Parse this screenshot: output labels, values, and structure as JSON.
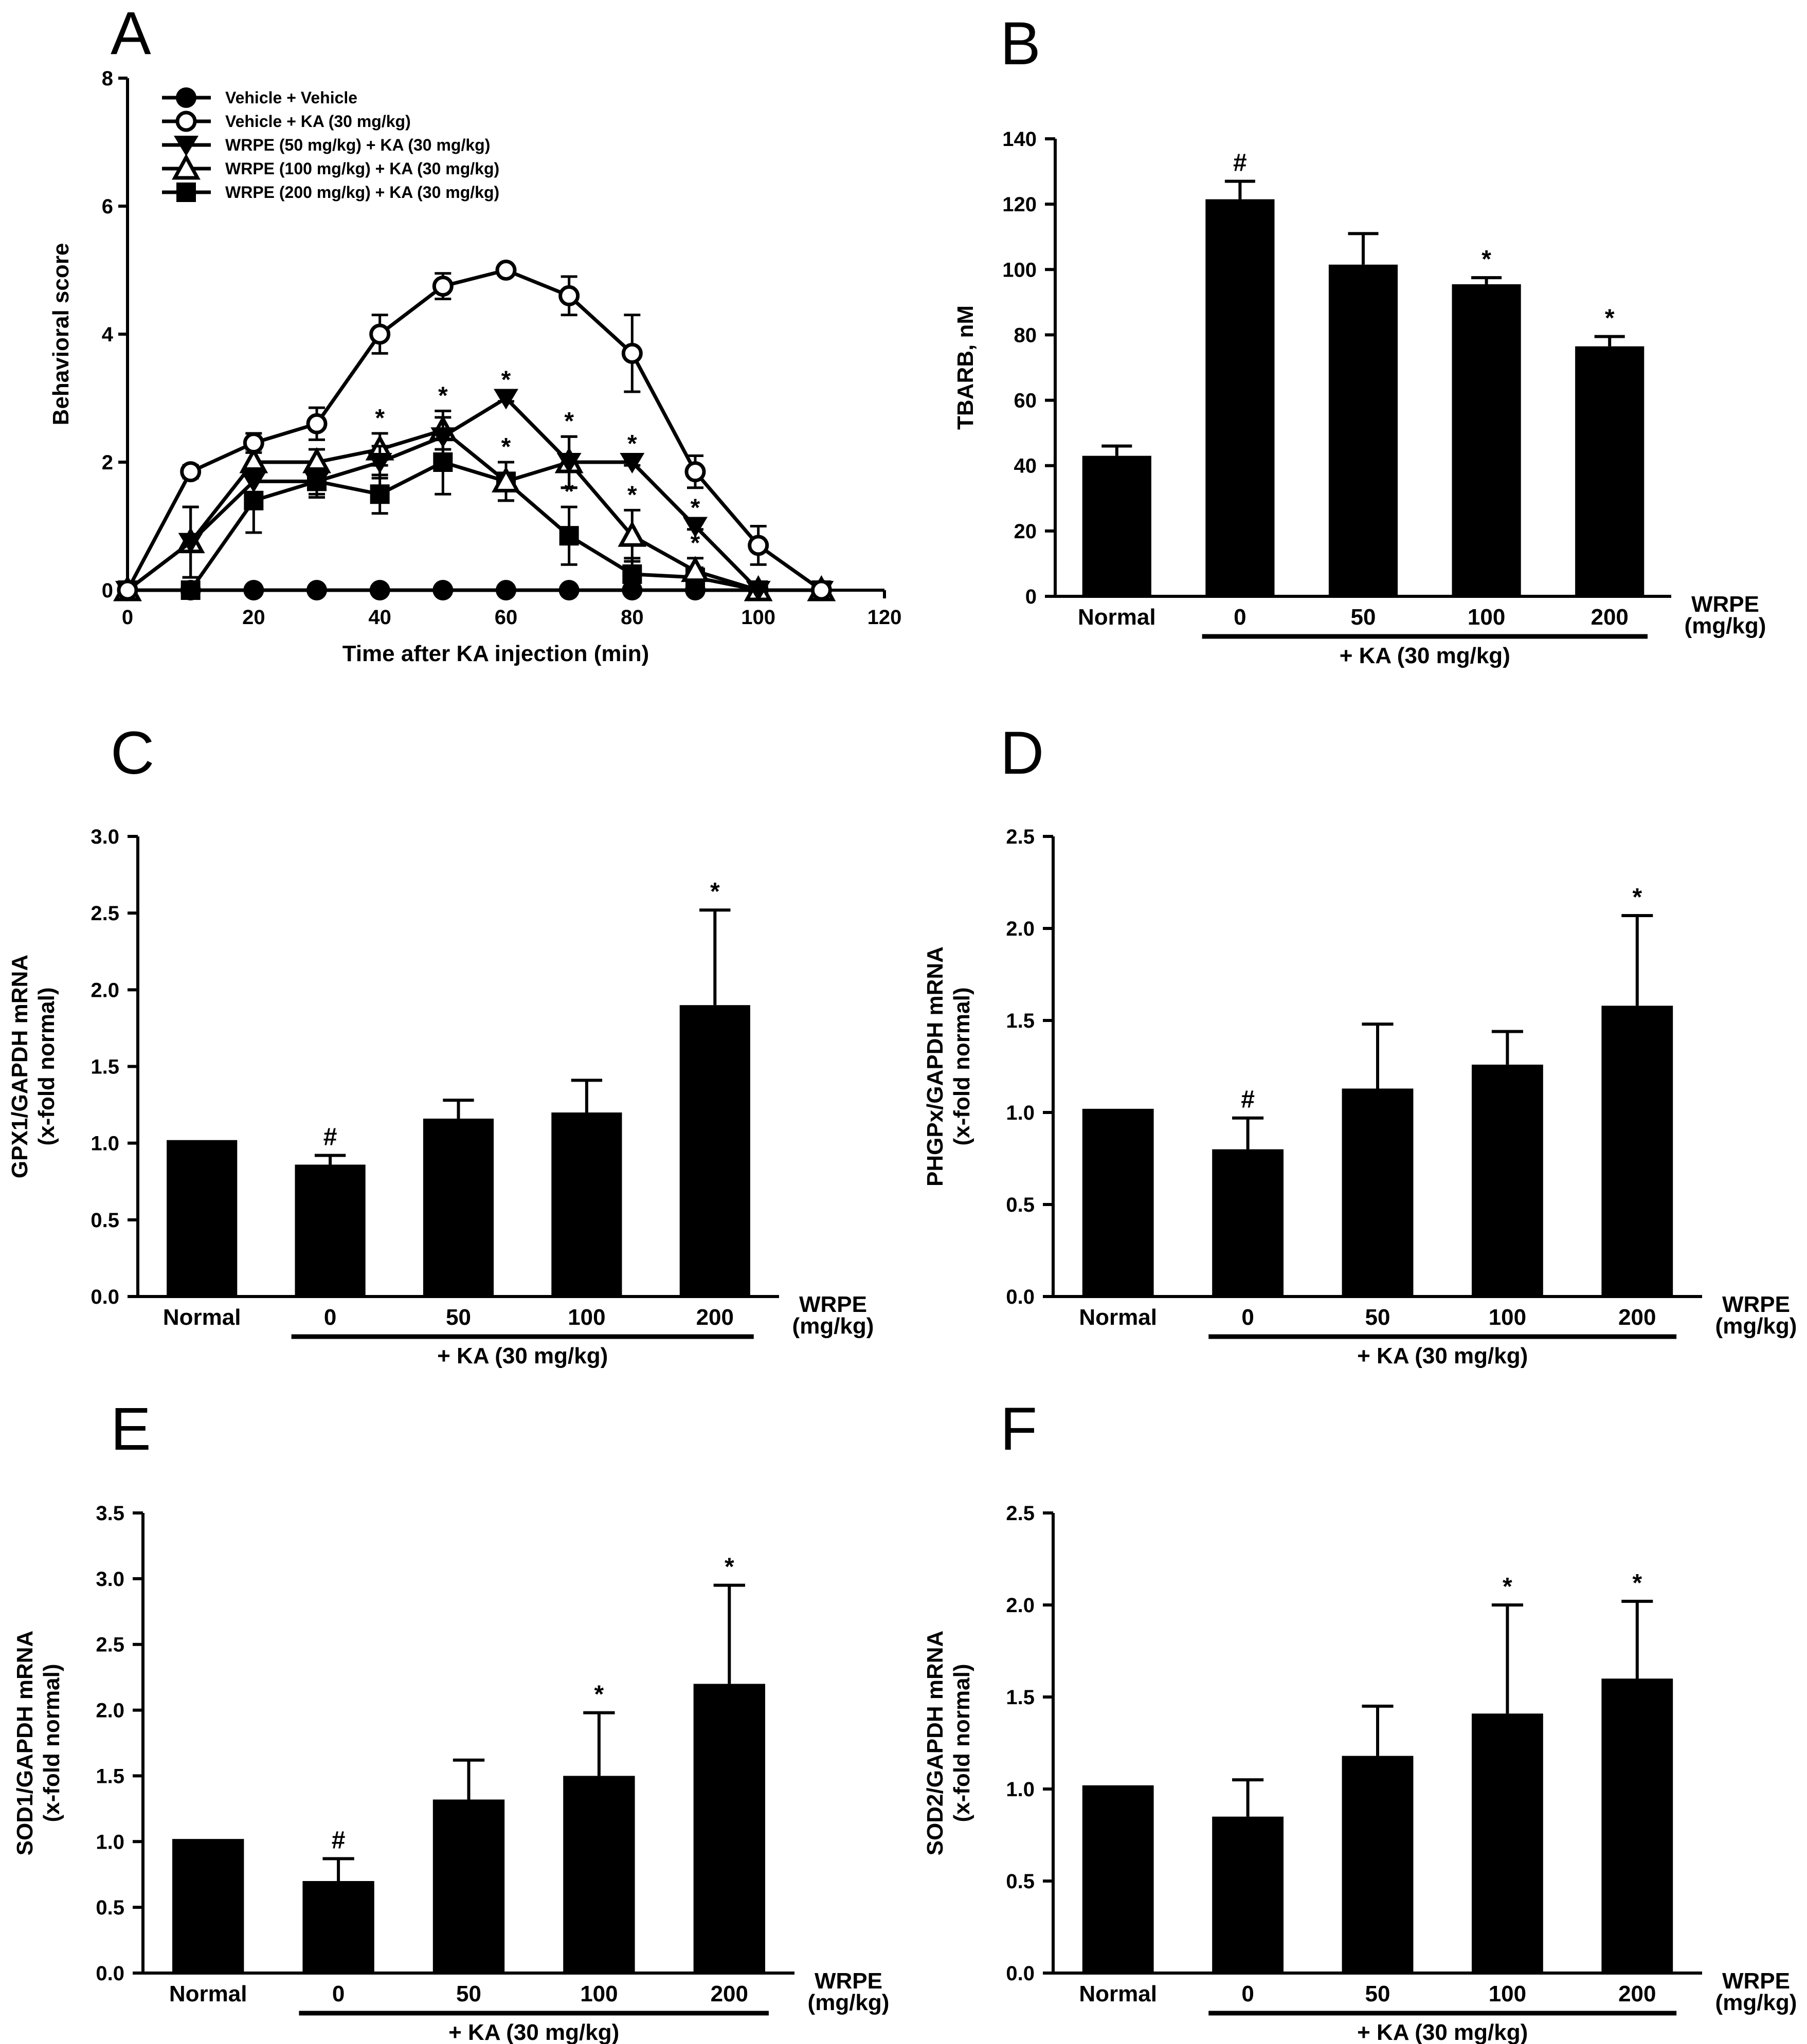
{
  "chart_data": [
    {
      "id": "A",
      "panel_label": "A",
      "type": "line",
      "xlabel": "Time after KA injection (min)",
      "ylabel": "Behavioral score",
      "xlim": [
        0,
        120
      ],
      "ylim": [
        0,
        8
      ],
      "x_ticks": [
        "0",
        "20",
        "40",
        "60",
        "80",
        "100",
        "120"
      ],
      "y_ticks": [
        "0",
        "2",
        "4",
        "6",
        "8"
      ],
      "x": [
        0,
        10,
        20,
        30,
        40,
        50,
        60,
        70,
        80,
        90,
        100,
        110
      ],
      "series": [
        {
          "name": "Vehicle + Vehicle",
          "marker": "circle-filled",
          "values": [
            0,
            0,
            0,
            0,
            0,
            0,
            0,
            0,
            0,
            0,
            0,
            0
          ],
          "errors": [
            0,
            0,
            0,
            0,
            0,
            0,
            0,
            0,
            0,
            0,
            0,
            0
          ],
          "sig": [
            "",
            "",
            "",
            "",
            "",
            "",
            "",
            "",
            "",
            "",
            "",
            ""
          ]
        },
        {
          "name": "Vehicle + KA (30 mg/kg)",
          "marker": "circle-open",
          "values": [
            0,
            1.85,
            2.3,
            2.6,
            4.0,
            4.75,
            5.0,
            4.6,
            3.7,
            1.85,
            0.7,
            0
          ],
          "errors": [
            0,
            0.1,
            0.15,
            0.25,
            0.3,
            0.2,
            0.05,
            0.3,
            0.6,
            0.25,
            0.3,
            0
          ],
          "sig": [
            "",
            "",
            "",
            "",
            "",
            "",
            "",
            "",
            "",
            "",
            "",
            ""
          ]
        },
        {
          "name": "WRPE (50 mg/kg) + KA (30 mg/kg)",
          "marker": "tri-down-filled",
          "values": [
            0,
            0.75,
            1.7,
            1.7,
            2.0,
            2.4,
            3.0,
            2.0,
            2.0,
            1.0,
            0,
            0
          ],
          "errors": [
            0,
            0.55,
            0.2,
            0.2,
            0.25,
            0.3,
            0.05,
            0.4,
            0.05,
            0.05,
            0,
            0
          ],
          "sig": [
            "",
            "",
            "",
            "",
            "",
            "",
            "*",
            "",
            "*",
            "*",
            "",
            ""
          ]
        },
        {
          "name": "WRPE (100 mg/kg) + KA (30 mg/kg)",
          "marker": "tri-up-open",
          "values": [
            0,
            0.75,
            2.0,
            2.0,
            2.2,
            2.5,
            1.7,
            2.0,
            0.85,
            0.3,
            0,
            0
          ],
          "errors": [
            0,
            0.55,
            0.2,
            0.2,
            0.25,
            0.3,
            0.3,
            0.4,
            0.4,
            0.2,
            0,
            0
          ],
          "sig": [
            "",
            "",
            "",
            "",
            "*",
            "*",
            "*",
            "*",
            "*",
            "*",
            "",
            ""
          ]
        },
        {
          "name": "WRPE (200 mg/kg) + KA (30 mg/kg)",
          "marker": "square-filled",
          "values": [
            0,
            0,
            1.4,
            1.7,
            1.5,
            2.0,
            1.7,
            0.85,
            0.25,
            0.2,
            0,
            0
          ],
          "errors": [
            0,
            0,
            0.5,
            0.25,
            0.3,
            0.5,
            0.3,
            0.45,
            0.25,
            0.15,
            0,
            0
          ],
          "sig": [
            "",
            "",
            "",
            "",
            "",
            "",
            "",
            "*",
            "",
            "",
            "",
            ""
          ]
        }
      ]
    },
    {
      "id": "B",
      "panel_label": "B",
      "type": "bar",
      "ylabel": "TBARB, nM",
      "ylim": [
        0,
        140
      ],
      "y_ticks": [
        "0",
        "20",
        "40",
        "60",
        "80",
        "100",
        "120",
        "140"
      ],
      "categories": [
        "Normal",
        "0",
        "50",
        "100",
        "200"
      ],
      "values": [
        43,
        121.5,
        101.5,
        95.5,
        76.5
      ],
      "errors": [
        3,
        5.5,
        9.5,
        2,
        3
      ],
      "sig": [
        "",
        "#",
        "",
        "*",
        "*"
      ],
      "group_label": "+ KA (30 mg/kg)",
      "axis_note": [
        "WRPE",
        "(mg/kg)"
      ]
    },
    {
      "id": "C",
      "panel_label": "C",
      "type": "bar",
      "ylabel": [
        "GPX1/GAPDH mRNA",
        "(x-fold normal)"
      ],
      "ylim": [
        0,
        3.0
      ],
      "y_ticks": [
        "0.0",
        "0.5",
        "1.0",
        "1.5",
        "2.0",
        "2.5",
        "3.0"
      ],
      "categories": [
        "Normal",
        "0",
        "50",
        "100",
        "200"
      ],
      "values": [
        1.02,
        0.86,
        1.16,
        1.2,
        1.9
      ],
      "errors": [
        0,
        0.06,
        0.12,
        0.21,
        0.62
      ],
      "sig": [
        "",
        "#",
        "",
        "",
        "*"
      ],
      "group_label": "+ KA (30 mg/kg)",
      "axis_note": [
        "WRPE",
        "(mg/kg)"
      ]
    },
    {
      "id": "D",
      "panel_label": "D",
      "type": "bar",
      "ylabel": [
        "PHGPx/GAPDH mRNA",
        "(x-fold normal)"
      ],
      "ylim": [
        0,
        2.5
      ],
      "y_ticks": [
        "0.0",
        "0.5",
        "1.0",
        "1.5",
        "2.0",
        "2.5"
      ],
      "categories": [
        "Normal",
        "0",
        "50",
        "100",
        "200"
      ],
      "values": [
        1.02,
        0.8,
        1.13,
        1.26,
        1.58
      ],
      "errors": [
        0,
        0.17,
        0.35,
        0.18,
        0.49
      ],
      "sig": [
        "",
        "#",
        "",
        "",
        "*"
      ],
      "group_label": "+ KA (30 mg/kg)",
      "axis_note": [
        "WRPE",
        "(mg/kg)"
      ]
    },
    {
      "id": "E",
      "panel_label": "E",
      "type": "bar",
      "ylabel": [
        "SOD1/GAPDH mRNA",
        "(x-fold normal)"
      ],
      "ylim": [
        0,
        3.5
      ],
      "y_ticks": [
        "0.0",
        "0.5",
        "1.0",
        "1.5",
        "2.0",
        "2.5",
        "3.0",
        "3.5"
      ],
      "categories": [
        "Normal",
        "0",
        "50",
        "100",
        "200"
      ],
      "values": [
        1.02,
        0.7,
        1.32,
        1.5,
        2.2
      ],
      "errors": [
        0,
        0.17,
        0.3,
        0.48,
        0.75
      ],
      "sig": [
        "",
        "#",
        "",
        "*",
        "*"
      ],
      "group_label": "+ KA (30 mg/kg)",
      "axis_note": [
        "WRPE",
        "(mg/kg)"
      ]
    },
    {
      "id": "F",
      "panel_label": "F",
      "type": "bar",
      "ylabel": [
        "SOD2/GAPDH mRNA",
        "(x-fold normal)"
      ],
      "ylim": [
        0,
        2.5
      ],
      "y_ticks": [
        "0.0",
        "0.5",
        "1.0",
        "1.5",
        "2.0",
        "2.5"
      ],
      "categories": [
        "Normal",
        "0",
        "50",
        "100",
        "200"
      ],
      "values": [
        1.02,
        0.85,
        1.18,
        1.41,
        1.6
      ],
      "errors": [
        0,
        0.2,
        0.27,
        0.59,
        0.42
      ],
      "sig": [
        "",
        "",
        "",
        "*",
        "*"
      ],
      "group_label": "+ KA (30 mg/kg)",
      "axis_note": [
        "WRPE",
        "(mg/kg)"
      ]
    }
  ]
}
